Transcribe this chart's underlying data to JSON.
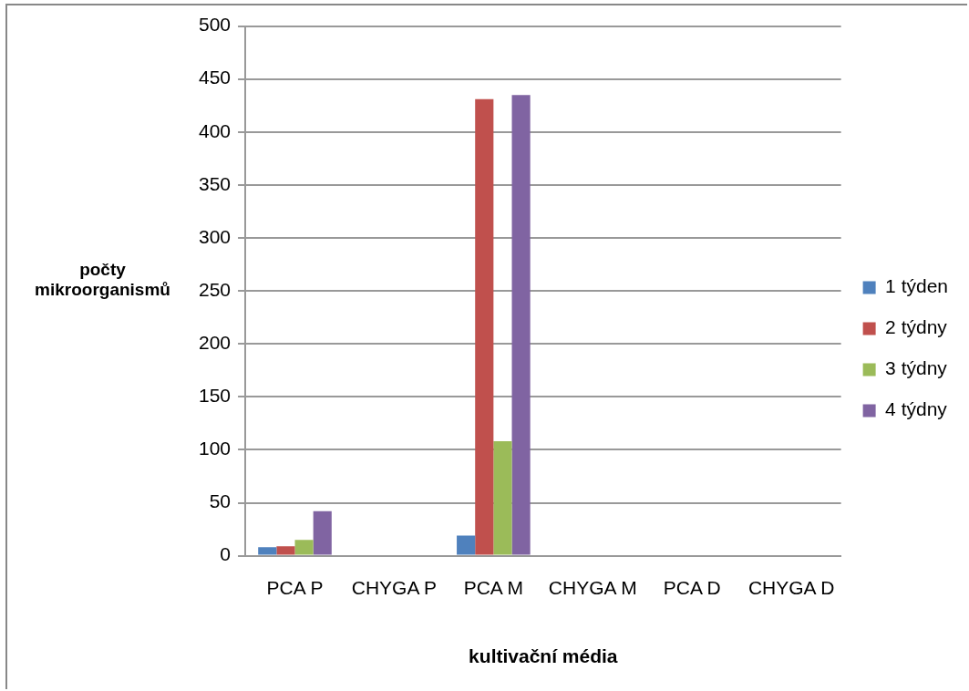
{
  "chart_data": {
    "type": "bar",
    "xlabel": "kultivační média",
    "ylabel": "počty mikroorganismů",
    "categories": [
      "PCA P",
      "CHYGA P",
      "PCA M",
      "CHYGA M",
      "PCA D",
      "CHYGA D"
    ],
    "series": [
      {
        "name": "1 týden",
        "color": "#4f81bd",
        "values": [
          8,
          0,
          19,
          0,
          0,
          0
        ]
      },
      {
        "name": "2 týdny",
        "color": "#c0504d",
        "values": [
          9,
          0,
          431,
          0,
          0,
          0
        ]
      },
      {
        "name": "3 týdny",
        "color": "#9bbb59",
        "values": [
          15,
          0,
          108,
          0,
          0,
          0
        ]
      },
      {
        "name": "4 týdny",
        "color": "#8064a2",
        "values": [
          42,
          0,
          435,
          0,
          0,
          0
        ]
      }
    ],
    "ylim": [
      0,
      500
    ],
    "yticks": [
      0,
      50,
      100,
      150,
      200,
      250,
      300,
      350,
      400,
      450,
      500
    ],
    "grid": "y",
    "legend": "right"
  }
}
